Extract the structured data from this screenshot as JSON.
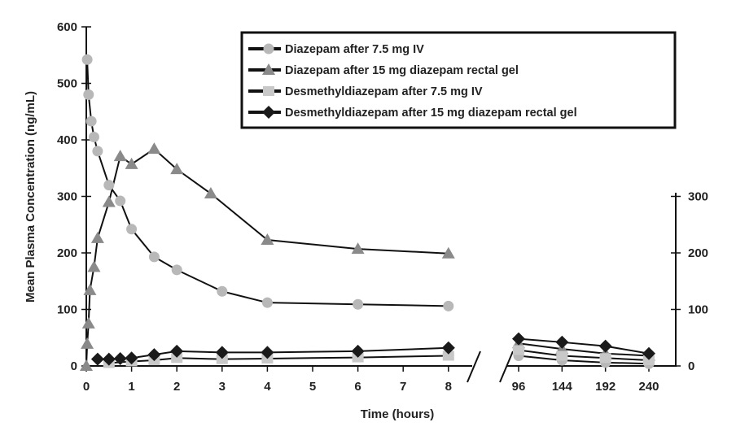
{
  "chart_data": {
    "type": "line",
    "xlabel": "Time (hours)",
    "ylabel": "Mean Plasma Concentration (ng/mL)",
    "ylim": [
      0,
      600
    ],
    "right_ylim": [
      0,
      300
    ],
    "left_xticks": [
      0,
      1,
      2,
      3,
      4,
      5,
      6,
      7,
      8
    ],
    "right_xticks": [
      96,
      144,
      192,
      240
    ],
    "left_yticks": [
      0,
      100,
      200,
      300,
      400,
      500,
      600
    ],
    "right_yticks": [
      0,
      100,
      200,
      300
    ],
    "legend_position": "top-right",
    "series": [
      {
        "name": "Diazepam after 7.5 mg IV",
        "marker": "circle",
        "color": "#b8b8b8",
        "x": [
          0.02,
          0.05,
          0.11,
          0.17,
          0.25,
          0.5,
          0.75,
          1,
          1.5,
          2,
          3,
          4,
          6,
          8,
          96,
          144,
          192,
          240
        ],
        "y": [
          542,
          480,
          433,
          405,
          380,
          320,
          292,
          242,
          193,
          170,
          132,
          112,
          109,
          106,
          18,
          10,
          6,
          4
        ]
      },
      {
        "name": "Diazepam after 15 mg diazepam rectal gel",
        "marker": "triangle",
        "color": "#8a8a8a",
        "x": [
          0,
          0.02,
          0.05,
          0.08,
          0.17,
          0.25,
          0.5,
          0.75,
          1,
          1.5,
          2,
          2.75,
          4,
          6,
          8,
          96,
          144,
          192,
          240
        ],
        "y": [
          0,
          39,
          75,
          134,
          175,
          226,
          290,
          371,
          357,
          384,
          348,
          305,
          223,
          207,
          199,
          40,
          30,
          22,
          18
        ]
      },
      {
        "name": "Desmethyldiazepam after 7.5 mg IV",
        "marker": "square",
        "color": "#c8c8c8",
        "x": [
          0.5,
          1,
          1.5,
          2,
          3,
          4,
          6,
          8,
          96,
          144,
          192,
          240
        ],
        "y": [
          5,
          8,
          10,
          14,
          12,
          13,
          15,
          18,
          28,
          18,
          14,
          10
        ]
      },
      {
        "name": "Desmethyldiazepam after 15 mg diazepam rectal gel",
        "marker": "diamond",
        "color": "#1a1a1a",
        "x": [
          0.25,
          0.5,
          0.75,
          1,
          1.5,
          2,
          3,
          4,
          6,
          8,
          96,
          144,
          192,
          240
        ],
        "y": [
          12,
          12,
          13,
          14,
          20,
          26,
          24,
          24,
          26,
          32,
          48,
          42,
          35,
          22
        ]
      }
    ]
  }
}
